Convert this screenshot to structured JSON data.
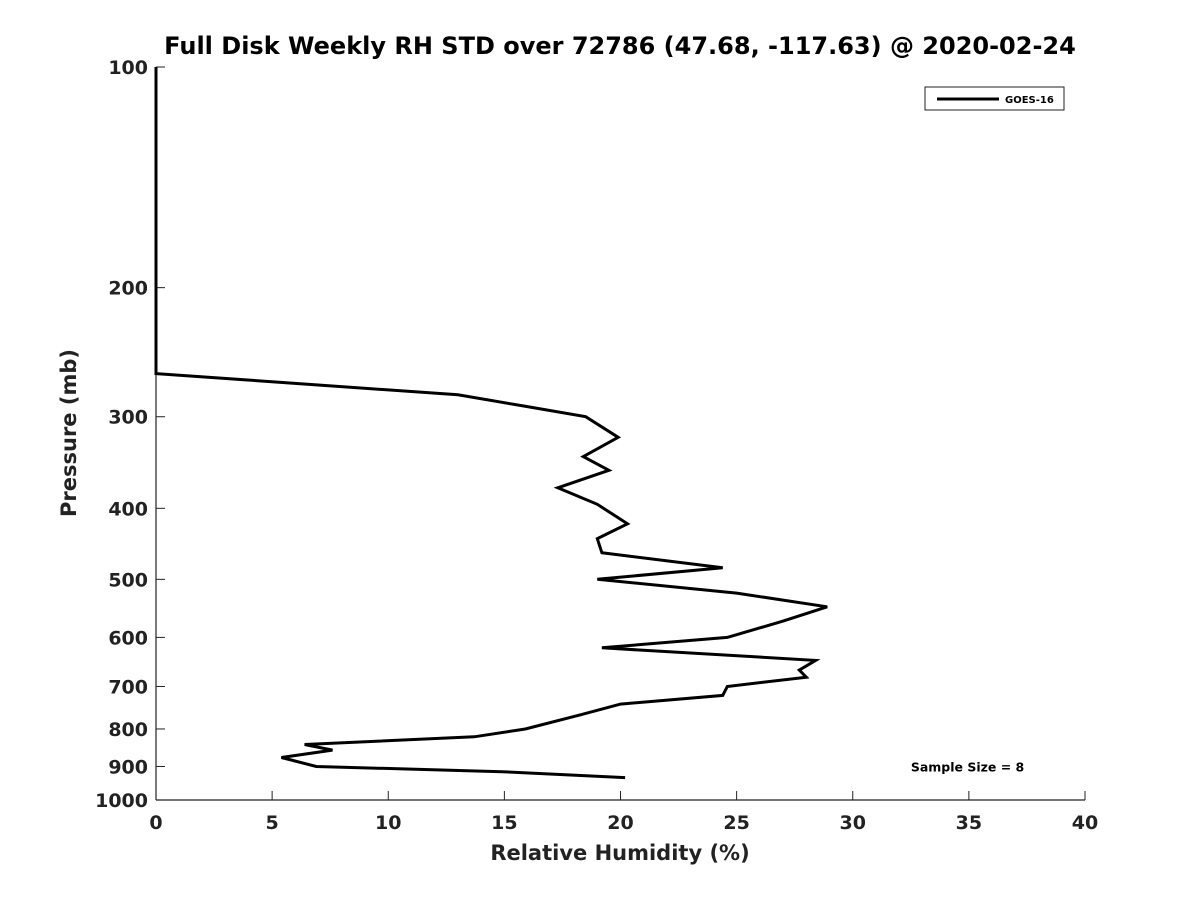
{
  "chart_data": {
    "type": "line",
    "title": "Full Disk Weekly RH STD over 72786 (47.68, -117.63) @ 2020-02-24",
    "xlabel": "Relative Humidity (%)",
    "ylabel": "Pressure (mb)",
    "xlim": [
      0,
      40
    ],
    "ylim": [
      100,
      1000
    ],
    "y_scale": "log",
    "y_reversed": true,
    "x_ticks": [
      0,
      5,
      10,
      15,
      20,
      25,
      30,
      35,
      40
    ],
    "y_ticks": [
      100,
      200,
      300,
      400,
      500,
      600,
      700,
      800,
      900,
      1000
    ],
    "grid": false,
    "legend_position": "top-right",
    "line_color": "#000000",
    "series": [
      {
        "name": "GOES-16",
        "points": [
          {
            "x": 0.0,
            "y": 100
          },
          {
            "x": 0.0,
            "y": 150
          },
          {
            "x": 0.0,
            "y": 200
          },
          {
            "x": 0.0,
            "y": 250
          },
          {
            "x": 0.0,
            "y": 262
          },
          {
            "x": 13.0,
            "y": 280
          },
          {
            "x": 15.8,
            "y": 290
          },
          {
            "x": 18.5,
            "y": 300
          },
          {
            "x": 19.9,
            "y": 320
          },
          {
            "x": 18.4,
            "y": 340
          },
          {
            "x": 19.5,
            "y": 355
          },
          {
            "x": 17.3,
            "y": 375
          },
          {
            "x": 19.0,
            "y": 395
          },
          {
            "x": 20.3,
            "y": 420
          },
          {
            "x": 19.0,
            "y": 440
          },
          {
            "x": 19.2,
            "y": 460
          },
          {
            "x": 24.4,
            "y": 482
          },
          {
            "x": 19.0,
            "y": 500
          },
          {
            "x": 25.0,
            "y": 522
          },
          {
            "x": 28.9,
            "y": 545
          },
          {
            "x": 27.0,
            "y": 570
          },
          {
            "x": 24.6,
            "y": 600
          },
          {
            "x": 19.2,
            "y": 620
          },
          {
            "x": 28.4,
            "y": 645
          },
          {
            "x": 27.7,
            "y": 665
          },
          {
            "x": 28.0,
            "y": 680
          },
          {
            "x": 24.6,
            "y": 700
          },
          {
            "x": 24.4,
            "y": 720
          },
          {
            "x": 20.0,
            "y": 740
          },
          {
            "x": 18.3,
            "y": 765
          },
          {
            "x": 15.9,
            "y": 800
          },
          {
            "x": 13.7,
            "y": 820
          },
          {
            "x": 6.4,
            "y": 840
          },
          {
            "x": 7.6,
            "y": 855
          },
          {
            "x": 5.4,
            "y": 875
          },
          {
            "x": 6.9,
            "y": 900
          },
          {
            "x": 14.9,
            "y": 915
          },
          {
            "x": 20.2,
            "y": 932
          }
        ]
      }
    ],
    "annotations": [
      {
        "text": "Sample Size = 8",
        "x": 32.5,
        "y": 900
      }
    ]
  }
}
